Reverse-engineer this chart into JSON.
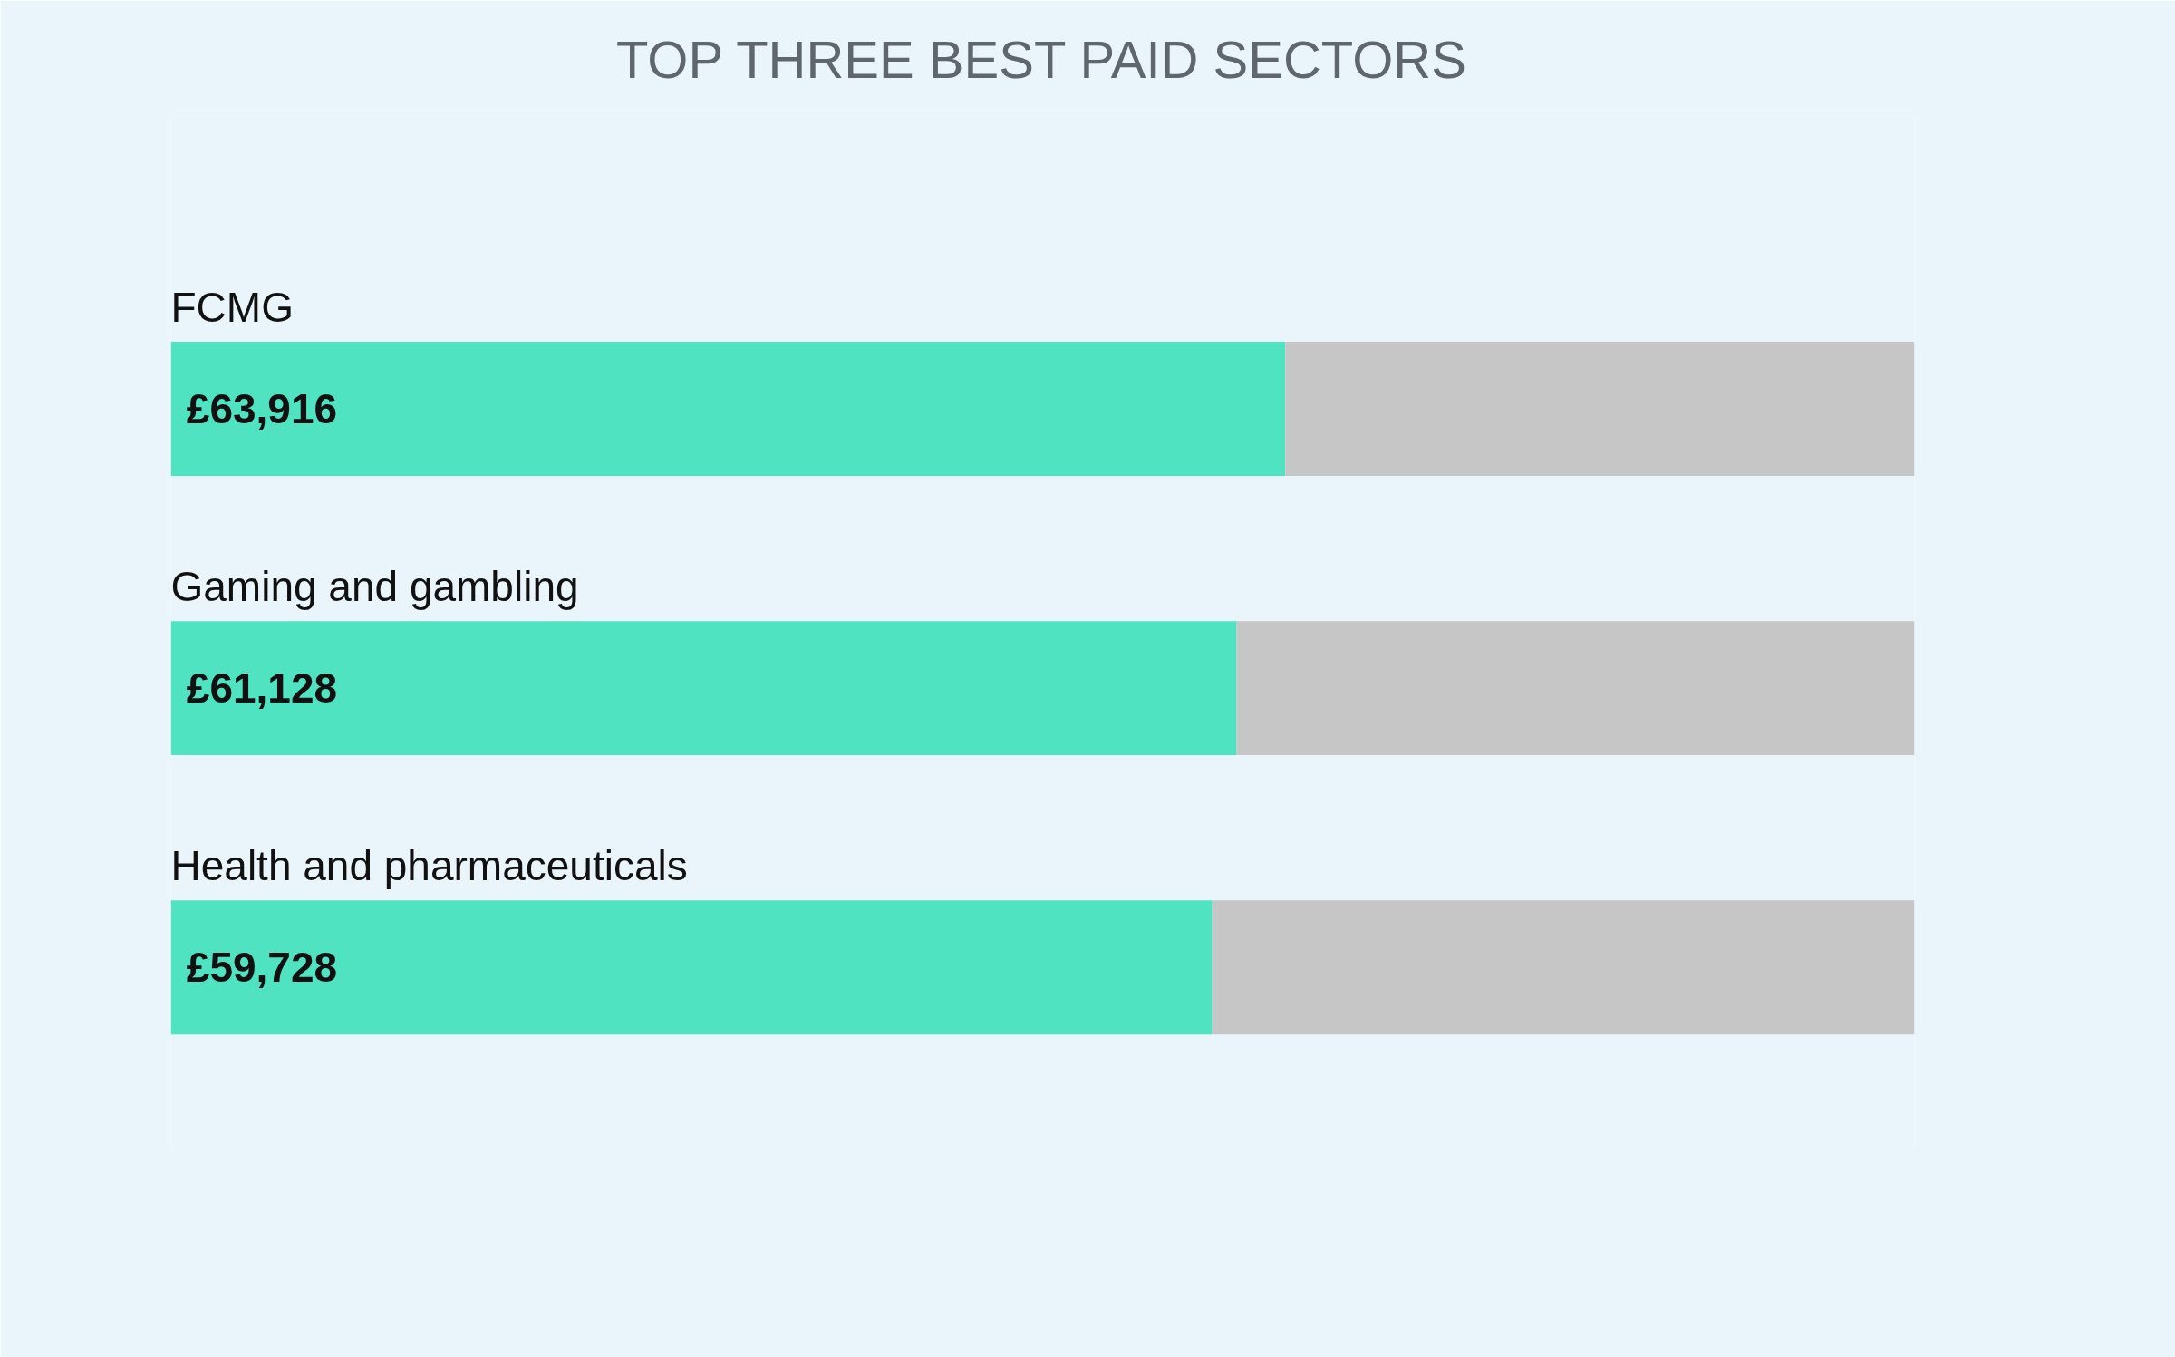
{
  "chart_data": {
    "type": "bar",
    "orientation": "horizontal",
    "stacked": true,
    "title": "TOP THREE BEST PAID SECTORS",
    "categories": [
      "FCMG",
      "Gaming and gambling",
      "Health and pharmaceuticals"
    ],
    "series": [
      {
        "color": "#50e3c2",
        "values": [
          63916,
          61128,
          59728
        ],
        "value_labels": [
          "£63,916",
          "£61,128",
          "£59,728"
        ]
      },
      {
        "color": "#c6c6c6",
        "values": [
          36084,
          38872,
          40272
        ]
      }
    ],
    "xlim": [
      0,
      100000
    ],
    "tick_labels": false,
    "grid": false
  }
}
